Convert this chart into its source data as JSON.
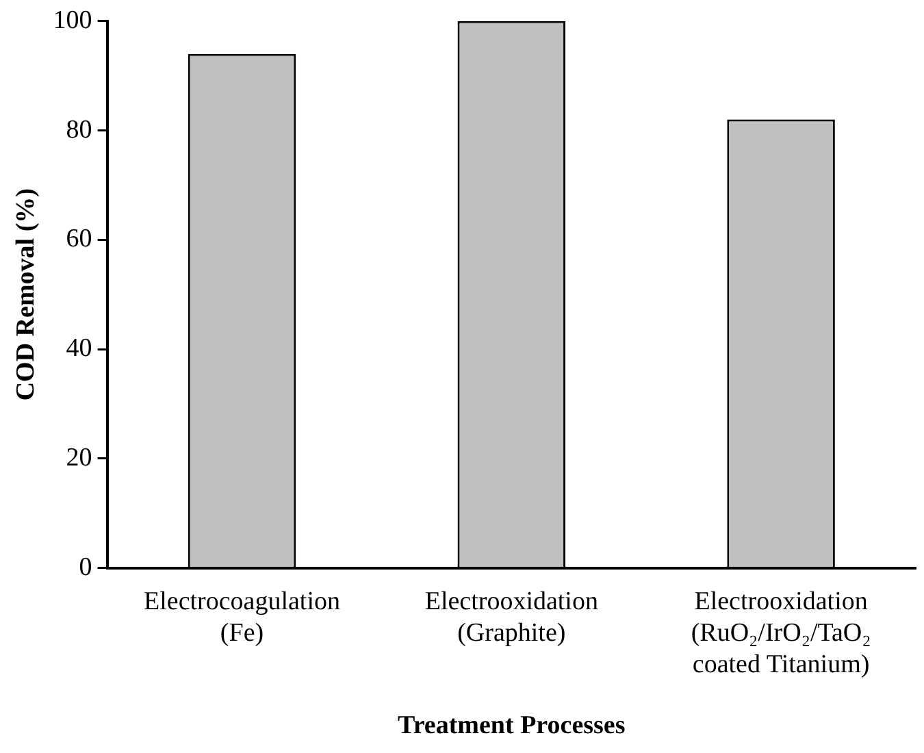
{
  "chart_data": {
    "type": "bar",
    "xlabel": "Treatment Processes",
    "ylabel": "COD Removal (%)",
    "categories": [
      "Electrocoagulation\n(Fe)",
      "Electrooxidation\n(Graphite)",
      "Electrooxidation\n(RuO₂/IrO₂/TaO₂\ncoated Titanium)"
    ],
    "values": [
      94,
      100,
      82
    ],
    "color": "#c0c0c0",
    "ylim": [
      0,
      100
    ],
    "yticks": [
      0,
      20,
      40,
      60,
      80,
      100
    ],
    "grid": false,
    "legend": false
  }
}
